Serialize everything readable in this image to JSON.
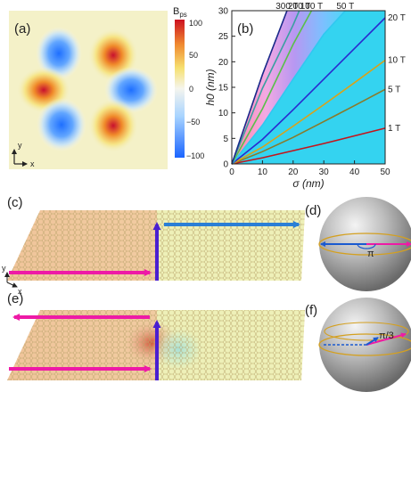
{
  "panels": {
    "a": "(a)",
    "b": "(b)",
    "c": "(c)",
    "d": "(d)",
    "e": "(e)",
    "f": "(f)"
  },
  "panel_a": {
    "colorbar_title": "B",
    "colorbar_title_sub": "ps",
    "colorbar_ticks": [
      "100",
      "50",
      "0",
      "−50",
      "−100"
    ],
    "axis_x": "x",
    "axis_y": "y"
  },
  "panel_c": {
    "axis_x": "x",
    "axis_y": "y"
  },
  "panel_d": {
    "angle_label": "π"
  },
  "panel_f": {
    "angle_label": "π/3"
  },
  "colors": {
    "positive": "#d7191c",
    "negative": "#2b83ff",
    "sheet": "#e7d49a",
    "arrow_magenta": "#ee1aa6",
    "arrow_blue": "#2a7fd6",
    "arrow_violet": "#4a1fd0"
  },
  "chart_data": {
    "type": "line",
    "panel": "b",
    "xlabel": "σ (nm)",
    "ylabel": "h0 (nm)",
    "xlim": [
      0,
      50
    ],
    "ylim": [
      0,
      30
    ],
    "xticks": [
      "0",
      "10",
      "20",
      "30",
      "40",
      "50"
    ],
    "yticks": [
      "0",
      "5",
      "10",
      "15",
      "20",
      "25",
      "30"
    ],
    "series": [
      {
        "name": "1 T",
        "color": "#c3141c",
        "x": [
          0,
          10,
          20,
          30,
          40,
          50
        ],
        "y": [
          0,
          1.2,
          2.6,
          4.0,
          5.5,
          7.0
        ]
      },
      {
        "name": "5 T",
        "color": "#8a7a2a",
        "x": [
          0,
          10,
          20,
          30,
          40,
          50
        ],
        "y": [
          0,
          2.4,
          5.2,
          8.3,
          11.4,
          14.6
        ]
      },
      {
        "name": "10 T",
        "color": "#d9a21a",
        "x": [
          0,
          10,
          20,
          30,
          40,
          50
        ],
        "y": [
          0,
          3.3,
          7.4,
          11.6,
          15.9,
          20.3
        ]
      },
      {
        "name": "20 T",
        "color": "#2a2ad0",
        "x": [
          0,
          10,
          20,
          30,
          40,
          50
        ],
        "y": [
          0,
          4.8,
          10.6,
          16.6,
          22.6,
          28.6
        ]
      },
      {
        "name": "50 T",
        "color": "#30c8f0",
        "x": [
          0,
          10,
          20,
          30,
          37
        ],
        "y": [
          0,
          7.6,
          16.6,
          25.4,
          30
        ]
      },
      {
        "name": "100 T",
        "color": "#59c04a",
        "x": [
          0,
          10,
          20,
          26
        ],
        "y": [
          0,
          10.8,
          23.4,
          30
        ]
      },
      {
        "name": "200 T",
        "color": "#3aa0a0",
        "x": [
          0,
          10,
          20,
          22
        ],
        "y": [
          0,
          14.8,
          27.2,
          30
        ]
      },
      {
        "name": "300 T",
        "color": "#1a2a8a",
        "x": [
          0,
          10,
          18
        ],
        "y": [
          0,
          17.5,
          30
        ]
      }
    ]
  }
}
